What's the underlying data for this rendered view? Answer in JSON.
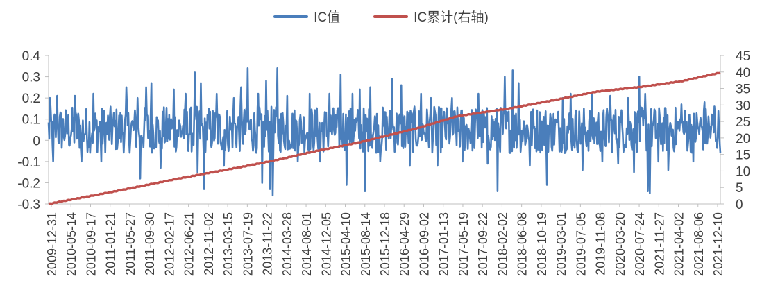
{
  "chart_data": {
    "type": "line",
    "legend": {
      "placement": "top-center"
    },
    "colors": {
      "ic": "#4a7ebb",
      "cum": "#c0504d",
      "axis": "#bfbfbf",
      "text": "#404040"
    },
    "series": [
      {
        "name": "IC值",
        "axis": "left"
      },
      {
        "name": "IC累计(右轴)",
        "axis": "right"
      }
    ],
    "y_left": {
      "range": [
        -0.3,
        0.4
      ],
      "ticks": [
        "0.4",
        "0.3",
        "0.2",
        "0.1",
        "0",
        "-0.1",
        "-0.2",
        "-0.3"
      ]
    },
    "y_right": {
      "range": [
        0,
        45
      ],
      "ticks": [
        "45",
        "40",
        "35",
        "30",
        "25",
        "20",
        "15",
        "10",
        "5",
        "0"
      ]
    },
    "grid": false,
    "x_tick_labels": [
      "2009-12-31",
      "2010-05-14",
      "2010-09-17",
      "2011-01-21",
      "2011-05-27",
      "2011-09-30",
      "2012-02-17",
      "2012-06-21",
      "2012-11-02",
      "2013-03-15",
      "2013-07-19",
      "2013-11-22",
      "2014-03-28",
      "2014-08-01",
      "2014-12-05",
      "2015-04-10",
      "2015-08-14",
      "2015-12-18",
      "2016-04-29",
      "2016-09-02",
      "2017-01-13",
      "2017-05-19",
      "2017-09-22",
      "2018-02-02",
      "2018-06-08",
      "2018-10-19",
      "2019-03-01",
      "2019-07-05",
      "2019-11-08",
      "2020-03-20",
      "2020-07-24",
      "2021-11-27",
      "2021-04-02",
      "2021-08-06",
      "2021-12-10"
    ],
    "ic_spikes": [
      {
        "i": 2,
        "v": 0.2
      },
      {
        "i": 7,
        "v": -0.1
      },
      {
        "i": 13,
        "v": 0.21
      },
      {
        "i": 40,
        "v": 0.21
      },
      {
        "i": 50,
        "v": -0.1
      },
      {
        "i": 68,
        "v": 0.22
      },
      {
        "i": 80,
        "v": -0.1
      },
      {
        "i": 118,
        "v": 0.25
      },
      {
        "i": 135,
        "v": 0.2
      },
      {
        "i": 139,
        "v": -0.18
      },
      {
        "i": 148,
        "v": 0.25
      },
      {
        "i": 156,
        "v": 0.27
      },
      {
        "i": 170,
        "v": -0.13
      },
      {
        "i": 190,
        "v": 0.24
      },
      {
        "i": 208,
        "v": 0.22
      },
      {
        "i": 222,
        "v": 0.32
      },
      {
        "i": 226,
        "v": -0.15
      },
      {
        "i": 231,
        "v": 0.27
      },
      {
        "i": 236,
        "v": -0.23
      },
      {
        "i": 255,
        "v": 0.22
      },
      {
        "i": 266,
        "v": -0.12
      },
      {
        "i": 281,
        "v": 0.2
      },
      {
        "i": 292,
        "v": 0.25
      },
      {
        "i": 302,
        "v": 0.34
      },
      {
        "i": 318,
        "v": 0.22
      },
      {
        "i": 324,
        "v": -0.2
      },
      {
        "i": 330,
        "v": 0.28
      },
      {
        "i": 336,
        "v": -0.23
      },
      {
        "i": 340,
        "v": -0.26
      },
      {
        "i": 347,
        "v": 0.34
      },
      {
        "i": 362,
        "v": 0.21
      },
      {
        "i": 378,
        "v": -0.1
      },
      {
        "i": 396,
        "v": 0.22
      },
      {
        "i": 412,
        "v": -0.1
      },
      {
        "i": 426,
        "v": 0.22
      },
      {
        "i": 443,
        "v": 0.31
      },
      {
        "i": 452,
        "v": -0.21
      },
      {
        "i": 461,
        "v": 0.22
      },
      {
        "i": 472,
        "v": 0.24
      },
      {
        "i": 480,
        "v": -0.24
      },
      {
        "i": 488,
        "v": 0.25
      },
      {
        "i": 503,
        "v": -0.1
      },
      {
        "i": 521,
        "v": 0.29
      },
      {
        "i": 535,
        "v": 0.26
      },
      {
        "i": 548,
        "v": -0.12
      },
      {
        "i": 565,
        "v": 0.22
      },
      {
        "i": 580,
        "v": 0.2
      },
      {
        "i": 590,
        "v": -0.12
      },
      {
        "i": 612,
        "v": 0.2
      },
      {
        "i": 628,
        "v": -0.1
      },
      {
        "i": 652,
        "v": 0.22
      },
      {
        "i": 666,
        "v": -0.11
      },
      {
        "i": 681,
        "v": -0.24
      },
      {
        "i": 692,
        "v": 0.3
      },
      {
        "i": 704,
        "v": 0.33
      },
      {
        "i": 713,
        "v": 0.27
      },
      {
        "i": 730,
        "v": -0.12
      },
      {
        "i": 756,
        "v": -0.21
      },
      {
        "i": 780,
        "v": 0.2
      },
      {
        "i": 792,
        "v": 0.22
      },
      {
        "i": 810,
        "v": -0.14
      },
      {
        "i": 824,
        "v": 0.22
      },
      {
        "i": 840,
        "v": -0.1
      },
      {
        "i": 852,
        "v": 0.21
      },
      {
        "i": 864,
        "v": -0.11
      },
      {
        "i": 879,
        "v": 0.2
      },
      {
        "i": 888,
        "v": -0.15
      },
      {
        "i": 896,
        "v": 0.3
      },
      {
        "i": 905,
        "v": 0.22
      },
      {
        "i": 909,
        "v": -0.24
      },
      {
        "i": 912,
        "v": -0.25
      },
      {
        "i": 925,
        "v": -0.1
      },
      {
        "i": 940,
        "v": -0.14
      },
      {
        "i": 960,
        "v": 0.17
      },
      {
        "i": 978,
        "v": -0.1
      },
      {
        "i": 995,
        "v": 0.18
      },
      {
        "i": 1010,
        "v": 0.16
      }
    ],
    "ic_total_points": 1020,
    "cum_knots": [
      [
        0,
        0.0
      ],
      [
        100,
        3.8
      ],
      [
        200,
        7.8
      ],
      [
        300,
        11.5
      ],
      [
        350,
        13.5
      ],
      [
        400,
        15.8
      ],
      [
        470,
        18.6
      ],
      [
        560,
        23.0
      ],
      [
        620,
        26.6
      ],
      [
        700,
        29.0
      ],
      [
        760,
        31.2
      ],
      [
        830,
        34.0
      ],
      [
        900,
        35.5
      ],
      [
        960,
        37.2
      ],
      [
        1019,
        39.8
      ]
    ]
  }
}
